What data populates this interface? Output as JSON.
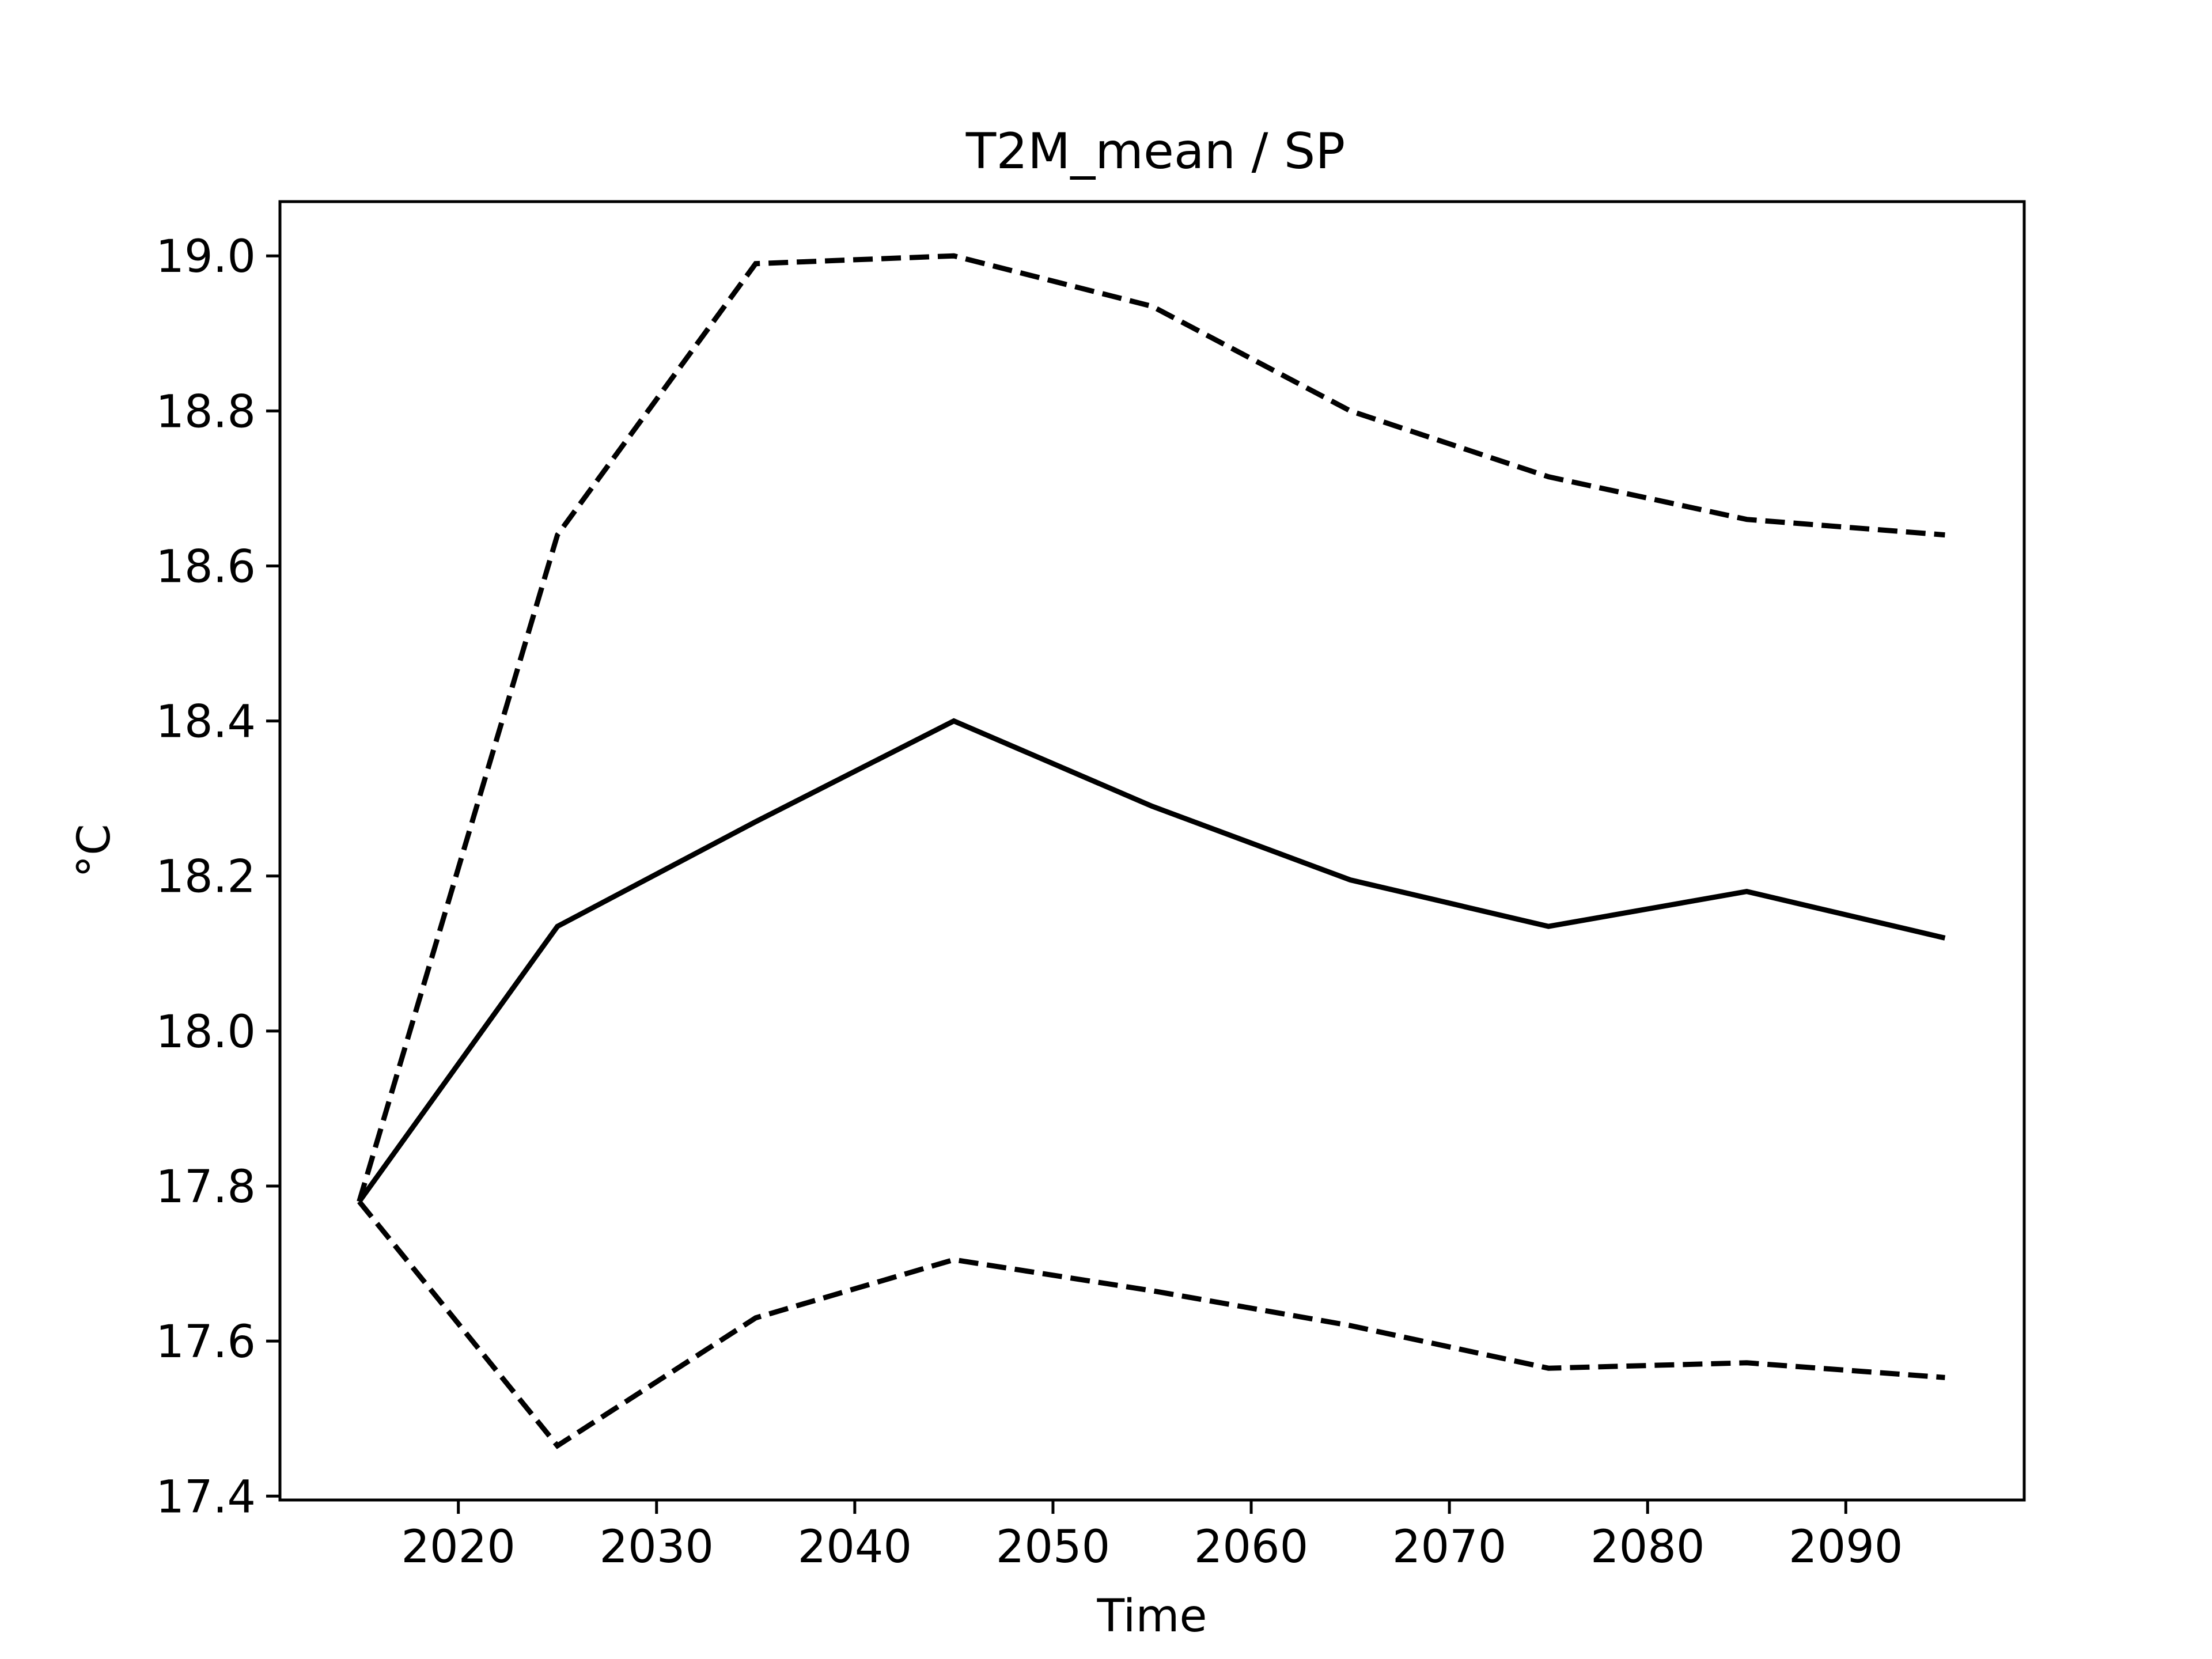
{
  "chart_data": {
    "type": "line",
    "title": "T2M_mean / SP",
    "xlabel": "Time",
    "ylabel": "°C",
    "xlim": [
      2011,
      2099
    ],
    "ylim": [
      17.395,
      19.07
    ],
    "xticks": [
      2020,
      2030,
      2040,
      2050,
      2060,
      2070,
      2080,
      2090
    ],
    "yticks": [
      17.4,
      17.6,
      17.8,
      18.0,
      18.2,
      18.4,
      18.6,
      18.8,
      19.0
    ],
    "ytick_format": "fixed1",
    "grid": false,
    "legend": false,
    "x": [
      2015,
      2025,
      2035,
      2045,
      2055,
      2065,
      2075,
      2085,
      2095
    ],
    "series": [
      {
        "style": "dashed",
        "color": "#000000",
        "values": [
          17.78,
          18.64,
          18.99,
          19.0,
          18.935,
          18.8,
          18.715,
          18.66,
          18.64
        ]
      },
      {
        "style": "solid",
        "color": "#000000",
        "values": [
          17.78,
          18.135,
          18.27,
          18.4,
          18.29,
          18.195,
          18.135,
          18.18,
          18.12
        ]
      },
      {
        "style": "dashed",
        "color": "#000000",
        "values": [
          17.78,
          17.465,
          17.63,
          17.705,
          17.665,
          17.62,
          17.565,
          17.572,
          17.553
        ]
      }
    ]
  }
}
